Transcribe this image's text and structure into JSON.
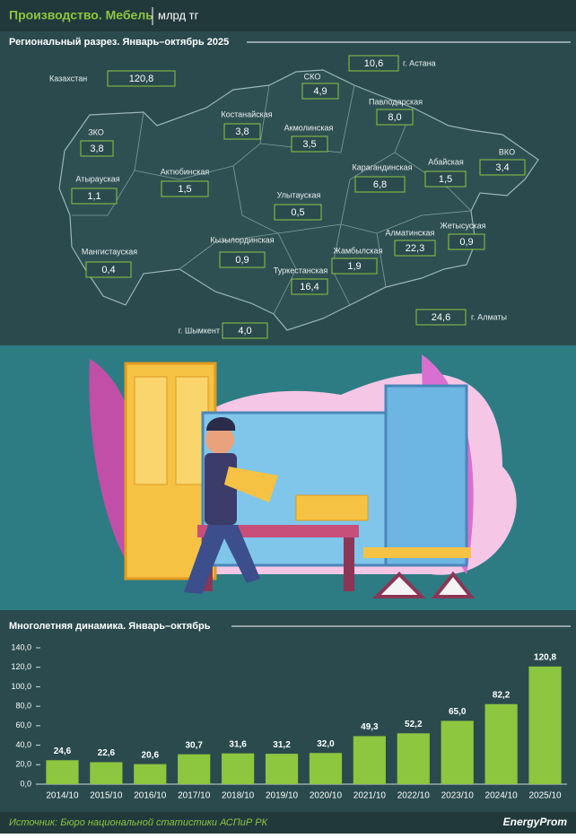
{
  "header": {
    "title": "Производство. Мебель",
    "unit": "млрд тг"
  },
  "map": {
    "title": "Региональный разрез. Январь–октябрь 2025",
    "regions": [
      {
        "name": "Казахстан",
        "value": {
          "value": 120.8,
          "label": "120,8"
        }
      },
      {
        "name": "СКО",
        "value": {
          "value": 4.9,
          "label": "4,9"
        }
      },
      {
        "name": "г. Астана",
        "value": {
          "value": 10.6,
          "label": "10,6"
        }
      },
      {
        "name": "Павлодарская",
        "value": {
          "value": 8.0,
          "label": "8,0"
        }
      },
      {
        "name": "Костанайская",
        "value": {
          "value": 3.8,
          "label": "3,8"
        }
      },
      {
        "name": "Акмолинская",
        "value": {
          "value": 3.5,
          "label": "3,5"
        }
      },
      {
        "name": "ЗКО",
        "value": {
          "value": 3.8,
          "label": "3,8"
        }
      },
      {
        "name": "ВКО",
        "value": {
          "value": 3.4,
          "label": "3,4"
        }
      },
      {
        "name": "Абайская",
        "value": {
          "value": 1.5,
          "label": "1,5"
        }
      },
      {
        "name": "Атырауская",
        "value": {
          "value": 1.1,
          "label": "1,1"
        }
      },
      {
        "name": "Актюбинская",
        "value": {
          "value": 1.5,
          "label": "1,5"
        }
      },
      {
        "name": "Карагандинская",
        "value": {
          "value": 6.8,
          "label": "6,8"
        }
      },
      {
        "name": "Улытауская",
        "value": {
          "value": 0.5,
          "label": "0,5"
        }
      },
      {
        "name": "Жетысуская",
        "value": {
          "value": 0.9,
          "label": "0,9"
        }
      },
      {
        "name": "Алматинская",
        "value": {
          "value": 22.3,
          "label": "22,3"
        }
      },
      {
        "name": "Мангистауская",
        "value": {
          "value": 0.4,
          "label": "0,4"
        }
      },
      {
        "name": "Кызылординская",
        "value": {
          "value": 0.9,
          "label": "0,9"
        }
      },
      {
        "name": "Жамбылская",
        "value": {
          "value": 1.9,
          "label": "1,9"
        }
      },
      {
        "name": "Туркестанская",
        "value": {
          "value": 16.4,
          "label": "16,4"
        }
      },
      {
        "name": "г. Шымкент",
        "value": {
          "value": 4.0,
          "label": "4,0"
        }
      },
      {
        "name": "г. Алматы",
        "value": {
          "value": 24.6,
          "label": "24,6"
        }
      }
    ]
  },
  "chart_data": {
    "type": "bar",
    "title": "Многолетняя динамика. Январь–октябрь",
    "categories": [
      "2014/10",
      "2015/10",
      "2016/10",
      "2017/10",
      "2018/10",
      "2019/10",
      "2020/10",
      "2021/10",
      "2022/10",
      "2023/10",
      "2024/10",
      "2025/10"
    ],
    "values": [
      24.6,
      22.6,
      20.6,
      30.7,
      31.6,
      31.2,
      32.0,
      49.3,
      52.2,
      65.0,
      82.2,
      120.8
    ],
    "value_labels": [
      "24,6",
      "22,6",
      "20,6",
      "30,7",
      "31,6",
      "31,2",
      "32,0",
      "49,3",
      "52,2",
      "65,0",
      "82,2",
      "120,8"
    ],
    "color": "#8dc63f",
    "ylim": [
      0,
      140
    ],
    "yticks": [
      {
        "value": 0,
        "label": "0,0"
      },
      {
        "value": 20,
        "label": "20,0"
      },
      {
        "value": 40,
        "label": "40,0"
      },
      {
        "value": 60,
        "label": "60,0"
      },
      {
        "value": 80,
        "label": "80,0"
      },
      {
        "value": 100,
        "label": "100,0"
      },
      {
        "value": 120,
        "label": "120,0"
      },
      {
        "value": 140,
        "label": "140,0"
      }
    ],
    "grid": false
  },
  "footer": {
    "source": "Источник: Бюро национальной статистики АСПиР РК",
    "logo": "EnergyProm"
  }
}
